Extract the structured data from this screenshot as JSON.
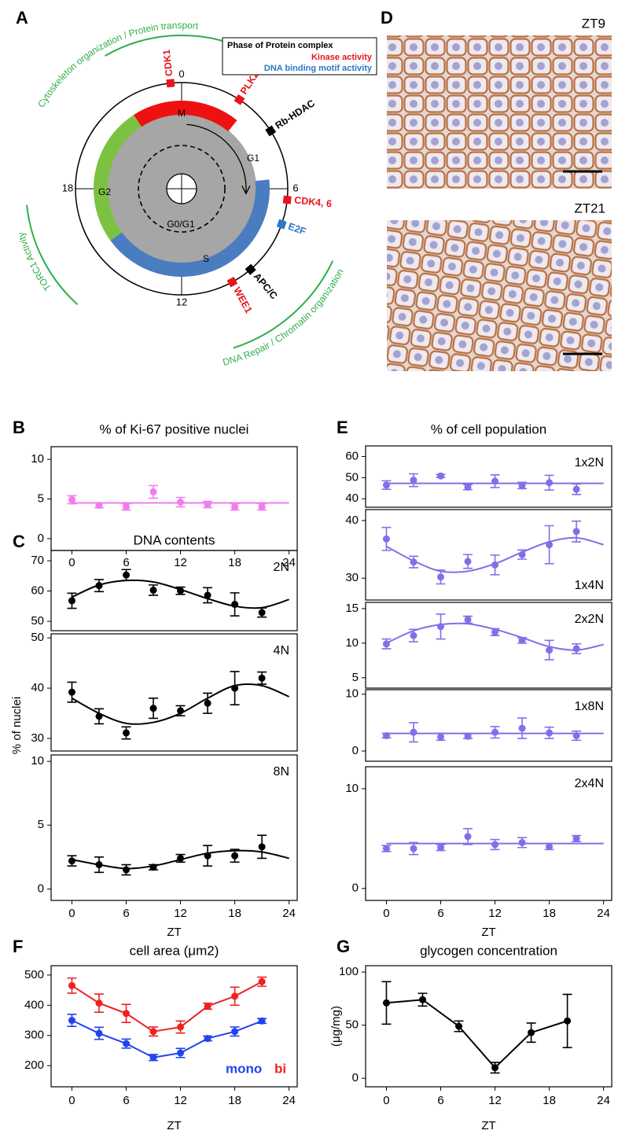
{
  "diagram": {
    "label": "A",
    "legend": {
      "title": "Phase of Protein complex",
      "items": [
        {
          "label": "Kinase activity",
          "color": "#e8141c"
        },
        {
          "label": "DNA binding motif activity",
          "color": "#2a78c8"
        }
      ]
    },
    "hours": [
      0,
      6,
      12,
      18
    ],
    "phases": [
      {
        "label": "M",
        "color": "#ee1111"
      },
      {
        "label": "G1",
        "color": "#a6a6a6"
      },
      {
        "label": "S",
        "color": "#4a7cc0"
      },
      {
        "label": "G2",
        "color": "#7cc242"
      },
      {
        "label": "G0/G1",
        "color": "#a6a6a6"
      }
    ],
    "markers": [
      {
        "label": "CDK1",
        "color": "#e8141c"
      },
      {
        "label": "PLK2",
        "color": "#e8141c"
      },
      {
        "label": "Rb-HDAC",
        "color": "#000000"
      },
      {
        "label": "CDK4, 6",
        "color": "#e8141c"
      },
      {
        "label": "E2F",
        "color": "#2a78c8"
      },
      {
        "label": "APC/C",
        "color": "#000000"
      },
      {
        "label": "WEE1",
        "color": "#e8141c"
      }
    ],
    "process_color": "#2fae4a",
    "processes": [
      "Cytoskeleton organization / Protein transport",
      "TORC1 Activity",
      "DNA Repair / Chromatin organization"
    ]
  },
  "micrographs": {
    "label": "D",
    "images": [
      {
        "label": "ZT9"
      },
      {
        "label": "ZT21"
      }
    ]
  },
  "chart_data": [
    {
      "type": "scatter",
      "panel": "B",
      "title": "% of Ki-67 positive nuclei",
      "xlim": [
        -2.3,
        24.9
      ],
      "xticks": [
        0,
        6,
        12,
        18,
        24
      ],
      "x": [
        0,
        3,
        6,
        9,
        12,
        15,
        18,
        21
      ],
      "subplots": [
        {
          "color": "#f07cf0",
          "ylim": [
            -1.5,
            11.6
          ],
          "yticks": [
            0,
            5,
            10
          ],
          "values": [
            4.9,
            4.2,
            4.0,
            5.9,
            4.6,
            4.3,
            4.0,
            4.0
          ],
          "errors": [
            0.5,
            0.3,
            0.4,
            0.8,
            0.6,
            0.4,
            0.4,
            0.4
          ],
          "fit": {
            "x": [
              0,
              24
            ],
            "values": [
              4.5,
              4.5
            ]
          }
        }
      ]
    },
    {
      "type": "scatter",
      "panel": "C",
      "title": "DNA contents",
      "y_label": "% of nuclei",
      "x_label": "ZT",
      "xlim": [
        -2.3,
        24.9
      ],
      "xticks": [
        0,
        6,
        12,
        18,
        24
      ],
      "x": [
        0,
        3,
        6,
        9,
        12,
        15,
        18,
        21
      ],
      "subplots": [
        {
          "label": "2N",
          "color": "#000000",
          "ylim": [
            46.9,
            73.4
          ],
          "yticks": [
            50,
            60,
            70
          ],
          "values": [
            56.8,
            61.8,
            65.3,
            60.3,
            60.1,
            58.6,
            55.6,
            52.9
          ],
          "errors": [
            2.5,
            2.0,
            1.8,
            1.7,
            1.2,
            2.5,
            3.8,
            1.5
          ],
          "fit": {
            "x": [
              0,
              3,
              6,
              9,
              12,
              15,
              18,
              21,
              24
            ],
            "values": [
              58,
              62,
              63.5,
              63,
              60.5,
              57.5,
              55,
              54.5,
              57.2
            ]
          }
        },
        {
          "label": "4N",
          "color": "#000000",
          "ylim": [
            27.5,
            50.8
          ],
          "yticks": [
            30,
            40,
            50
          ],
          "values": [
            39.2,
            34.4,
            31.1,
            36.0,
            35.5,
            37.0,
            40.0,
            42.0
          ],
          "errors": [
            2.0,
            1.5,
            1.2,
            2.0,
            1.0,
            2.0,
            3.3,
            1.2
          ],
          "fit": {
            "x": [
              0,
              3,
              6,
              9,
              12,
              15,
              18,
              21,
              24
            ],
            "values": [
              38,
              35,
              33,
              33.2,
              35,
              38,
              40.5,
              40.5,
              38.3
            ]
          }
        },
        {
          "label": "8N",
          "color": "#000000",
          "ylim": [
            -0.9,
            10.5
          ],
          "yticks": [
            0,
            5,
            10
          ],
          "values": [
            2.2,
            1.9,
            1.5,
            1.7,
            2.4,
            2.6,
            2.6,
            3.3
          ],
          "errors": [
            0.4,
            0.6,
            0.4,
            0.2,
            0.3,
            0.8,
            0.5,
            0.9
          ],
          "fit": {
            "x": [
              0,
              3,
              6,
              9,
              12,
              15,
              18,
              21,
              24
            ],
            "values": [
              2.3,
              1.9,
              1.6,
              1.8,
              2.3,
              2.8,
              3.0,
              2.9,
              2.4
            ]
          }
        }
      ]
    },
    {
      "type": "scatter",
      "panel": "E",
      "title": "% of cell population",
      "x_label": "ZT",
      "xlim": [
        -2.3,
        24.9
      ],
      "xticks": [
        0,
        6,
        12,
        18,
        24
      ],
      "x": [
        0,
        3,
        6,
        9,
        12,
        15,
        18,
        21
      ],
      "subplots": [
        {
          "label": "1x2N",
          "color": "#8070e8",
          "ylim": [
            36,
            65
          ],
          "yticks": [
            40,
            50,
            60
          ],
          "values": [
            46.5,
            48.8,
            50.8,
            45.5,
            48.3,
            46.3,
            47.6,
            44.5
          ],
          "errors": [
            2,
            3,
            0.7,
            1.2,
            3,
            1.5,
            3.5,
            2.5
          ],
          "fit": {
            "x": [
              0,
              24
            ],
            "values": [
              47.3,
              47.3
            ]
          }
        },
        {
          "label": "1x4N",
          "label_corner": "lower right",
          "color": "#8070e8",
          "ylim": [
            26.2,
            41.9
          ],
          "yticks": [
            30,
            40
          ],
          "values": [
            36.8,
            32.8,
            30.2,
            32.9,
            32.3,
            34.1,
            35.8,
            38.1
          ],
          "errors": [
            2.0,
            1.0,
            1.2,
            1.2,
            1.7,
            0.8,
            3.3,
            1.8
          ],
          "fit": {
            "x": [
              0,
              3,
              6,
              9,
              12,
              15,
              18,
              21,
              24
            ],
            "values": [
              35.5,
              33,
              31.2,
              31.2,
              32.5,
              34.5,
              36.3,
              37,
              35.8
            ]
          }
        },
        {
          "label": "2x2N",
          "color": "#8070e8",
          "ylim": [
            3.5,
            15.9
          ],
          "yticks": [
            5,
            10,
            15
          ],
          "values": [
            9.9,
            11.1,
            12.4,
            13.4,
            11.6,
            10.4,
            9.0,
            9.2
          ],
          "errors": [
            0.7,
            0.9,
            1.8,
            0.5,
            0.5,
            0.4,
            1.4,
            0.7
          ],
          "fit": {
            "x": [
              0,
              3,
              6,
              9,
              12,
              15,
              18,
              21,
              24
            ],
            "values": [
              10,
              11.8,
              12.7,
              12.8,
              12,
              10.8,
              9.5,
              9.0,
              9.8
            ]
          }
        },
        {
          "label": "1x8N",
          "color": "#8070e8",
          "ylim": [
            -1.8,
            10.8
          ],
          "yticks": [
            0,
            10
          ],
          "values": [
            2.7,
            3.3,
            2.5,
            2.6,
            3.3,
            4.0,
            3.2,
            2.7
          ],
          "errors": [
            0.4,
            1.7,
            0.6,
            0.4,
            1.0,
            1.8,
            1.0,
            0.8
          ],
          "fit": {
            "x": [
              0,
              24
            ],
            "values": [
              3.1,
              3.1
            ]
          }
        },
        {
          "label": "2x4N",
          "color": "#8070e8",
          "ylim": [
            -1.2,
            12.2
          ],
          "yticks": [
            0,
            10
          ],
          "values": [
            4.0,
            4.0,
            4.1,
            5.2,
            4.4,
            4.6,
            4.2,
            5.0
          ],
          "errors": [
            0.3,
            0.6,
            0.3,
            0.8,
            0.5,
            0.5,
            0.3,
            0.3
          ],
          "fit": {
            "x": [
              0,
              24
            ],
            "values": [
              4.5,
              4.5
            ]
          }
        }
      ]
    },
    {
      "type": "line",
      "panel": "F",
      "title": "cell area (μm2)",
      "x_label": "ZT",
      "xlim": [
        -2.3,
        24.9
      ],
      "xticks": [
        0,
        6,
        12,
        18,
        24
      ],
      "x": [
        0,
        3,
        6,
        9,
        12,
        15,
        18,
        21
      ],
      "ylim": [
        130,
        531
      ],
      "yticks": [
        200,
        300,
        400,
        500
      ],
      "series": [
        {
          "name": "mono",
          "color": "#2244ee",
          "values": [
            350,
            307,
            273,
            227,
            242,
            290,
            313,
            348
          ],
          "errors": [
            20,
            20,
            15,
            10,
            15,
            8,
            15,
            8
          ]
        },
        {
          "name": "bi",
          "color": "#ee2222",
          "values": [
            465,
            407,
            373,
            313,
            328,
            397,
            430,
            478
          ],
          "errors": [
            25,
            30,
            30,
            15,
            20,
            10,
            30,
            15
          ]
        }
      ]
    },
    {
      "type": "line",
      "panel": "G",
      "title": "glycogen concentration",
      "y_label": "(μg/mg)",
      "x_label": "ZT",
      "xlim": [
        -2.3,
        24.9
      ],
      "xticks": [
        0,
        6,
        12,
        18,
        24
      ],
      "x": [
        0,
        4,
        8,
        12,
        16,
        20
      ],
      "ylim": [
        -8,
        106
      ],
      "yticks": [
        0,
        50,
        100
      ],
      "series": [
        {
          "color": "#000000",
          "values": [
            71,
            74,
            49,
            10,
            43,
            54
          ],
          "errors": [
            20,
            6,
            5,
            5,
            9,
            25
          ]
        }
      ]
    }
  ]
}
